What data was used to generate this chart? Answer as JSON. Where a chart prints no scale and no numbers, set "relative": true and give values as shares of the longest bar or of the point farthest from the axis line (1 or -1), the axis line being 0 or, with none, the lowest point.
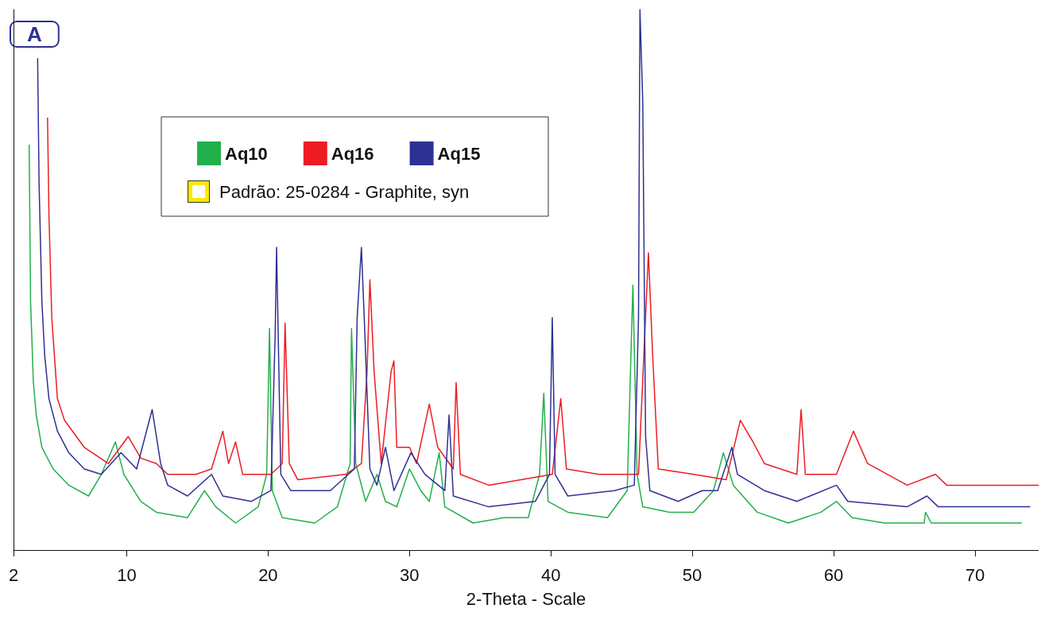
{
  "chart_data": {
    "type": "line",
    "relative": true,
    "xlabel": "2-Theta - Scale",
    "xlim": [
      2,
      74.5
    ],
    "xticks": [
      2,
      10,
      20,
      30,
      40,
      50,
      60,
      70
    ],
    "legend": "top",
    "grid": false,
    "marker": "none",
    "line_style": "solid",
    "annotations": [
      "A",
      "Padrão: 25-0284 - Graphite, syn"
    ],
    "series": [
      {
        "name": "Aq10",
        "color": "#22b04b",
        "x": [
          3.1,
          3.2,
          3.4,
          3.6,
          4.0,
          4.8,
          5.9,
          7.3,
          8.2,
          9.2,
          9.8,
          11.0,
          12.1,
          14.3,
          15.5,
          16.3,
          17.7,
          19.3,
          19.9,
          20.1,
          20.3,
          21.0,
          23.3,
          24.9,
          25.8,
          25.9,
          26.2,
          26.9,
          27.7,
          28.3,
          29.1,
          30.0,
          30.8,
          31.4,
          32.1,
          32.5,
          34.5,
          36.7,
          38.4,
          39.2,
          39.5,
          39.8,
          41.2,
          44.0,
          45.4,
          45.8,
          46.1,
          46.5,
          48.4,
          50.1,
          51.5,
          52.2,
          52.9,
          54.6,
          56.8,
          59.1,
          60.2,
          61.3,
          63.6,
          66.4,
          66.5,
          66.9,
          69.7,
          73.3
        ],
        "values": [
          0.75,
          0.46,
          0.31,
          0.25,
          0.19,
          0.15,
          0.12,
          0.1,
          0.14,
          0.2,
          0.14,
          0.09,
          0.07,
          0.06,
          0.11,
          0.08,
          0.05,
          0.08,
          0.14,
          0.41,
          0.11,
          0.06,
          0.05,
          0.08,
          0.16,
          0.41,
          0.16,
          0.09,
          0.14,
          0.09,
          0.08,
          0.15,
          0.11,
          0.09,
          0.18,
          0.08,
          0.05,
          0.06,
          0.06,
          0.14,
          0.29,
          0.09,
          0.07,
          0.06,
          0.11,
          0.49,
          0.14,
          0.08,
          0.07,
          0.07,
          0.11,
          0.18,
          0.12,
          0.07,
          0.05,
          0.07,
          0.09,
          0.06,
          0.05,
          0.05,
          0.07,
          0.05,
          0.05,
          0.05
        ]
      },
      {
        "name": "Aq16",
        "color": "#ed1c24",
        "x": [
          4.4,
          4.5,
          4.7,
          5.1,
          5.6,
          7.0,
          8.7,
          10.1,
          11.0,
          12.1,
          12.9,
          14.9,
          16.0,
          16.8,
          17.2,
          17.7,
          18.2,
          20.2,
          21.0,
          21.2,
          21.5,
          22.1,
          25.5,
          26.6,
          27.0,
          27.2,
          27.5,
          28.0,
          28.7,
          28.9,
          29.1,
          30.0,
          30.5,
          31.4,
          32.0,
          33.1,
          33.3,
          33.6,
          35.6,
          40.1,
          40.7,
          41.1,
          43.4,
          46.2,
          46.9,
          47.2,
          47.6,
          50.1,
          52.4,
          53.4,
          54.3,
          55.1,
          57.4,
          57.7,
          58.0,
          60.2,
          61.4,
          62.4,
          65.2,
          67.2,
          68.0,
          74.5
        ],
        "values": [
          0.8,
          0.62,
          0.43,
          0.28,
          0.24,
          0.19,
          0.16,
          0.21,
          0.17,
          0.16,
          0.14,
          0.14,
          0.15,
          0.22,
          0.16,
          0.2,
          0.14,
          0.14,
          0.16,
          0.42,
          0.16,
          0.13,
          0.14,
          0.16,
          0.33,
          0.5,
          0.33,
          0.16,
          0.33,
          0.35,
          0.19,
          0.19,
          0.16,
          0.27,
          0.19,
          0.15,
          0.31,
          0.14,
          0.12,
          0.14,
          0.28,
          0.15,
          0.14,
          0.14,
          0.55,
          0.36,
          0.15,
          0.14,
          0.13,
          0.24,
          0.2,
          0.16,
          0.14,
          0.26,
          0.14,
          0.14,
          0.22,
          0.16,
          0.12,
          0.14,
          0.12,
          0.12
        ]
      },
      {
        "name": "Aq15",
        "color": "#2e3192",
        "x": [
          3.7,
          3.8,
          4.0,
          4.2,
          4.5,
          5.1,
          5.9,
          7.0,
          8.2,
          9.6,
          10.7,
          11.8,
          12.4,
          12.9,
          14.3,
          16.0,
          16.8,
          18.8,
          20.2,
          20.5,
          20.6,
          20.9,
          21.6,
          24.4,
          26.1,
          26.3,
          26.6,
          26.8,
          27.2,
          27.7,
          28.3,
          28.9,
          30.1,
          31.1,
          32.5,
          32.8,
          33.1,
          35.6,
          38.9,
          39.9,
          40.1,
          40.3,
          41.2,
          44.5,
          45.9,
          46.2,
          46.3,
          46.5,
          46.7,
          47.0,
          49.0,
          50.7,
          51.8,
          52.8,
          53.2,
          55.1,
          57.4,
          60.2,
          61.0,
          65.2,
          66.6,
          67.4,
          70.8,
          73.9
        ],
        "values": [
          0.91,
          0.68,
          0.46,
          0.36,
          0.28,
          0.22,
          0.18,
          0.15,
          0.14,
          0.18,
          0.15,
          0.26,
          0.16,
          0.12,
          0.1,
          0.14,
          0.1,
          0.09,
          0.11,
          0.4,
          0.56,
          0.14,
          0.11,
          0.11,
          0.15,
          0.43,
          0.56,
          0.43,
          0.15,
          0.12,
          0.19,
          0.11,
          0.18,
          0.14,
          0.11,
          0.25,
          0.1,
          0.08,
          0.09,
          0.14,
          0.43,
          0.14,
          0.1,
          0.11,
          0.12,
          0.43,
          1.0,
          0.83,
          0.21,
          0.11,
          0.09,
          0.11,
          0.11,
          0.19,
          0.14,
          0.11,
          0.09,
          0.12,
          0.09,
          0.08,
          0.1,
          0.08,
          0.08,
          0.08
        ]
      }
    ]
  }
}
